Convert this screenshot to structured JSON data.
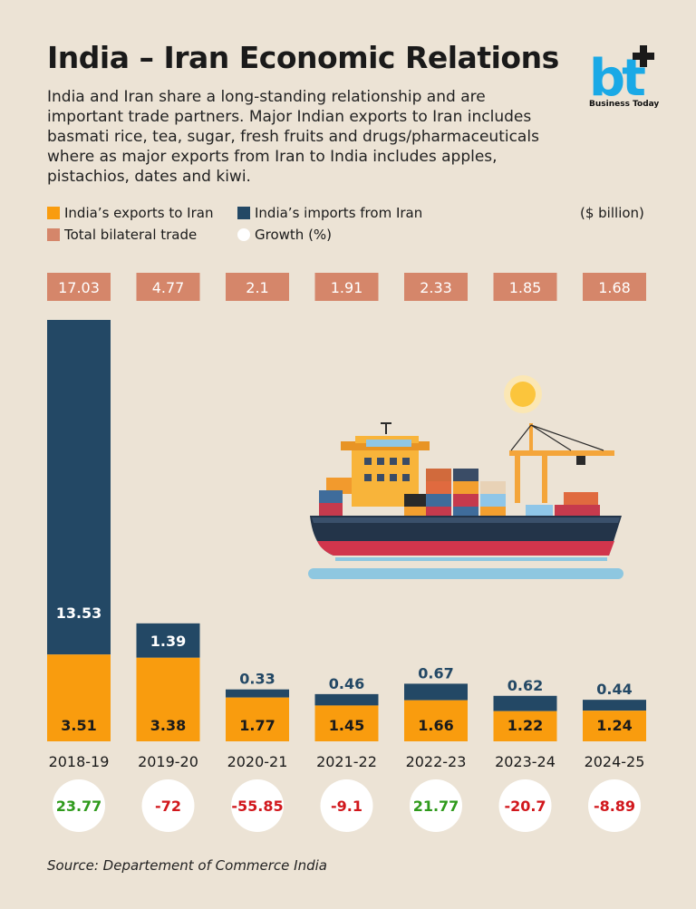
{
  "title": "India – Iran Economic Relations",
  "subtitle": "India and Iran share a long-standing relationship and are important trade partners. Major Indian exports to Iran includes basmati rice, tea, sugar, fresh fruits and drugs/pharmaceuticals where as major exports from Iran to India includes apples, pistachios, dates and kiwi.",
  "logo": {
    "mark": "bt",
    "text": "Business Today"
  },
  "unit_label": "($ billion)",
  "source": "Source: Departement of Commerce India",
  "colors": {
    "exports": "#f99c0e",
    "imports": "#234865",
    "total": "#d5866a",
    "growth_positive": "#2f9a1c",
    "growth_negative": "#d1171c",
    "background": "#ece3d5",
    "logo": "#1aa9e6"
  },
  "chart_data": {
    "type": "bar",
    "stacked": true,
    "categories": [
      "2018-19",
      "2019-20",
      "2020-21",
      "2021-22",
      "2022-23",
      "2023-24",
      "2024-25"
    ],
    "series": [
      {
        "name": "India’s exports to Iran",
        "values": [
          3.51,
          3.38,
          1.77,
          1.45,
          1.66,
          1.22,
          1.24
        ]
      },
      {
        "name": "India’s imports from Iran",
        "values": [
          13.53,
          1.39,
          0.33,
          0.46,
          0.67,
          0.62,
          0.44
        ]
      }
    ],
    "total": {
      "name": "Total bilateral trade",
      "labels": [
        "17.03",
        "4.77",
        "2.1",
        "1.91",
        "2.33",
        "1.85",
        "1.68"
      ],
      "values": [
        17.03,
        4.77,
        2.1,
        1.91,
        2.33,
        1.85,
        1.68
      ]
    },
    "growth": {
      "name": "Growth (%)",
      "labels": [
        "23.77",
        "-72",
        "-55.85",
        "-9.1",
        "21.77",
        "-20.7",
        "-8.89"
      ],
      "values": [
        23.77,
        -72,
        -55.85,
        -9.1,
        21.77,
        -20.7,
        -8.89
      ]
    },
    "ylim": [
      0,
      17.04
    ],
    "grid": false,
    "legend_position": "top"
  }
}
